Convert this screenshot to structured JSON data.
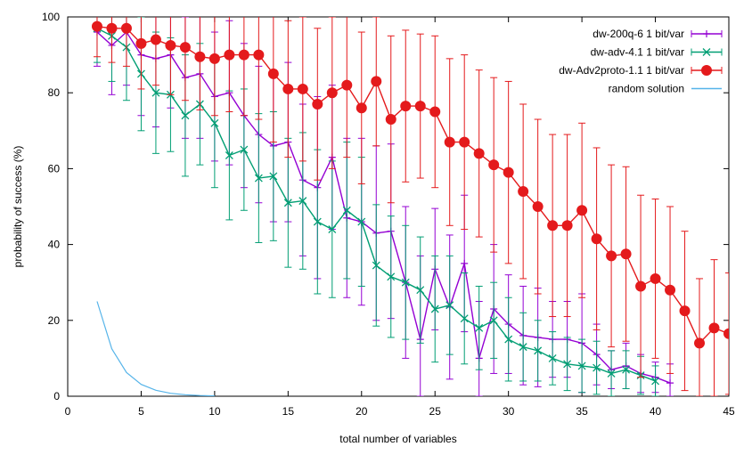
{
  "chart_data": {
    "type": "line",
    "title": "",
    "xlabel": "total number of variables",
    "ylabel": "probability of success (%)",
    "xlim": [
      0,
      45
    ],
    "ylim": [
      0,
      100
    ],
    "xticks": [
      "0",
      "5",
      "10",
      "15",
      "20",
      "25",
      "30",
      "35",
      "40",
      "45"
    ],
    "yticks": [
      "0",
      "20",
      "40",
      "60",
      "80",
      "100"
    ],
    "legend_position": "top-right",
    "series": [
      {
        "name": "dw-200q-6 1 bit/var",
        "color": "#9400d3",
        "marker": "plus",
        "x": [
          2,
          3,
          4,
          5,
          6,
          7,
          8,
          9,
          10,
          11,
          12,
          13,
          14,
          15,
          16,
          17,
          18,
          19,
          20,
          21,
          22,
          23,
          24,
          25,
          26,
          27,
          28,
          29,
          30,
          31,
          32,
          33,
          34,
          35,
          36,
          37,
          38,
          39,
          40,
          41
        ],
        "y": [
          96,
          92.5,
          96,
          90,
          89,
          90,
          84,
          85,
          79,
          80,
          74,
          69,
          66,
          67,
          57,
          55,
          63,
          47,
          46,
          43,
          43.5,
          30,
          15,
          33.5,
          23.5,
          35,
          10,
          23,
          19,
          16,
          15.5,
          15,
          15,
          14,
          11,
          7,
          8,
          6,
          5,
          3.5
        ],
        "err": [
          9,
          13,
          14,
          16,
          18,
          14,
          16,
          17,
          17,
          19,
          19,
          18,
          20,
          21,
          20,
          24,
          19,
          21,
          22,
          23,
          23,
          20,
          22,
          16,
          19,
          18,
          15,
          17,
          13,
          13,
          13,
          10,
          10,
          13,
          8,
          5,
          6,
          5,
          4,
          5
        ]
      },
      {
        "name": "dw-adv-4.1 1 bit/var",
        "color": "#009e73",
        "marker": "cross",
        "x": [
          2,
          3,
          4,
          5,
          6,
          7,
          8,
          9,
          10,
          11,
          12,
          13,
          14,
          15,
          16,
          17,
          18,
          19,
          20,
          21,
          22,
          23,
          24,
          25,
          26,
          27,
          28,
          29,
          30,
          31,
          32,
          33,
          34,
          35,
          36,
          37,
          38,
          39,
          40
        ],
        "y": [
          97,
          95,
          92,
          85,
          80,
          79.5,
          74,
          77,
          72,
          63.5,
          65,
          57.5,
          58,
          51,
          51.5,
          46,
          44,
          49,
          46,
          34.5,
          31.5,
          30,
          28,
          23,
          24,
          20.5,
          18,
          20,
          15,
          13,
          12,
          10,
          8.5,
          8,
          7.5,
          6,
          7,
          5.5,
          4
        ],
        "err": [
          9,
          12,
          14,
          15,
          16,
          15,
          16,
          16,
          17,
          17,
          16,
          17,
          17,
          17,
          18,
          19,
          18,
          18,
          17,
          16,
          16,
          15,
          14,
          14,
          13,
          12,
          11,
          10,
          11,
          9,
          8,
          7,
          7,
          7,
          7,
          6,
          5,
          5,
          4
        ]
      },
      {
        "name": "dw-Adv2proto-1.1 1 bit/var",
        "color": "#e41a1c",
        "marker": "circle",
        "x": [
          2,
          3,
          4,
          5,
          6,
          7,
          8,
          9,
          10,
          11,
          12,
          13,
          14,
          15,
          16,
          17,
          18,
          19,
          20,
          21,
          22,
          23,
          24,
          25,
          26,
          27,
          28,
          29,
          30,
          31,
          32,
          33,
          34,
          35,
          36,
          37,
          38,
          39,
          40,
          41,
          42,
          43,
          44,
          45
        ],
        "y": [
          97.5,
          97,
          97,
          93,
          94,
          92.5,
          92,
          89.5,
          89,
          90,
          90,
          90,
          85,
          81,
          81,
          77,
          80,
          82,
          76,
          83,
          73,
          76.5,
          76.5,
          75,
          67,
          67,
          64,
          61,
          59,
          54,
          50,
          45,
          45,
          49,
          41.5,
          37,
          37.5,
          29,
          31,
          28,
          22.5,
          14,
          18,
          16.5
        ],
        "err": [
          8,
          9,
          10,
          12,
          12,
          13,
          14,
          14,
          15,
          15,
          16,
          17,
          18,
          18,
          19,
          20,
          20,
          19,
          20,
          17,
          22,
          20,
          19,
          20,
          22,
          23,
          22,
          23,
          24,
          23,
          23,
          24,
          24,
          23,
          24,
          24,
          23,
          24,
          21,
          22,
          21,
          17,
          18,
          16
        ]
      },
      {
        "name": "random solution",
        "color": "#56b4e9",
        "marker": "none",
        "x": [
          2,
          3,
          4,
          5,
          6,
          7,
          8,
          9,
          10
        ],
        "y": [
          25,
          12.5,
          6.25,
          3.125,
          1.5625,
          0.78125,
          0.390625,
          0.1953125,
          0.09765625
        ]
      }
    ]
  }
}
